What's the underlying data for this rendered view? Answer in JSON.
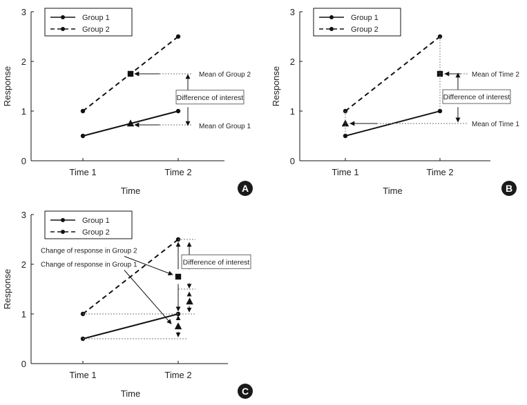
{
  "chart_data": [
    {
      "id": "A",
      "type": "line",
      "badge": "A",
      "xlabel": "Time",
      "ylabel": "Response",
      "categories": [
        "Time 1",
        "Time 2"
      ],
      "ylim": [
        0,
        3
      ],
      "yticks": [
        "0",
        "1",
        "2",
        "3"
      ],
      "legend": {
        "placement": "top-left",
        "entries": [
          "Group 1",
          "Group 2"
        ]
      },
      "series": [
        {
          "name": "Group 1",
          "style": "solid",
          "values": [
            0.5,
            1.0
          ]
        },
        {
          "name": "Group 2",
          "style": "dashed",
          "values": [
            1.0,
            2.5
          ]
        }
      ],
      "markers": [
        {
          "name": "mean-group-1-marker",
          "shape": "triangle",
          "x": 1.5,
          "y": 0.75
        },
        {
          "name": "mean-group-2-marker",
          "shape": "square",
          "x": 1.5,
          "y": 1.75
        }
      ],
      "annotations": {
        "mean_group2": "Mean of Group 2",
        "mean_group1": "Mean of Group 1",
        "difference": "Difference of interest"
      }
    },
    {
      "id": "B",
      "type": "line",
      "badge": "B",
      "xlabel": "Time",
      "ylabel": "Response",
      "categories": [
        "Time 1",
        "Time 2"
      ],
      "ylim": [
        0,
        3
      ],
      "yticks": [
        "0",
        "1",
        "2",
        "3"
      ],
      "legend": {
        "placement": "top-left",
        "entries": [
          "Group 1",
          "Group 2"
        ]
      },
      "series": [
        {
          "name": "Group 1",
          "style": "solid",
          "values": [
            0.5,
            1.0
          ]
        },
        {
          "name": "Group 2",
          "style": "dashed",
          "values": [
            1.0,
            2.5
          ]
        }
      ],
      "markers": [
        {
          "name": "mean-time-1-marker",
          "shape": "triangle",
          "x": 1,
          "y": 0.75
        },
        {
          "name": "mean-time-2-marker",
          "shape": "square",
          "x": 2,
          "y": 1.75
        }
      ],
      "annotations": {
        "mean_time2": "Mean of Time 2",
        "mean_time1": "Mean of Time 1",
        "difference": "Difference of interest"
      }
    },
    {
      "id": "C",
      "type": "line",
      "badge": "C",
      "xlabel": "Time",
      "ylabel": "Response",
      "categories": [
        "Time 1",
        "Time 2"
      ],
      "ylim": [
        0,
        3
      ],
      "yticks": [
        "0",
        "1",
        "2",
        "3"
      ],
      "legend": {
        "placement": "top-left",
        "entries": [
          "Group 1",
          "Group 2"
        ]
      },
      "series": [
        {
          "name": "Group 1",
          "style": "solid",
          "values": [
            0.5,
            1.0
          ]
        },
        {
          "name": "Group 2",
          "style": "dashed",
          "values": [
            1.0,
            2.5
          ]
        }
      ],
      "markers": [
        {
          "name": "change-group-2-marker",
          "shape": "square",
          "x": 2,
          "y": 1.75
        },
        {
          "name": "change-group-1-marker",
          "shape": "triangle",
          "x": 2,
          "y": 0.75
        },
        {
          "name": "difference-marker",
          "shape": "triangle",
          "x": 2.12,
          "y": 1.25
        }
      ],
      "annotations": {
        "change_group2": "Change of response in Group 2",
        "change_group1": "Change of response in Group 1",
        "difference": "Difference of interest"
      }
    }
  ]
}
